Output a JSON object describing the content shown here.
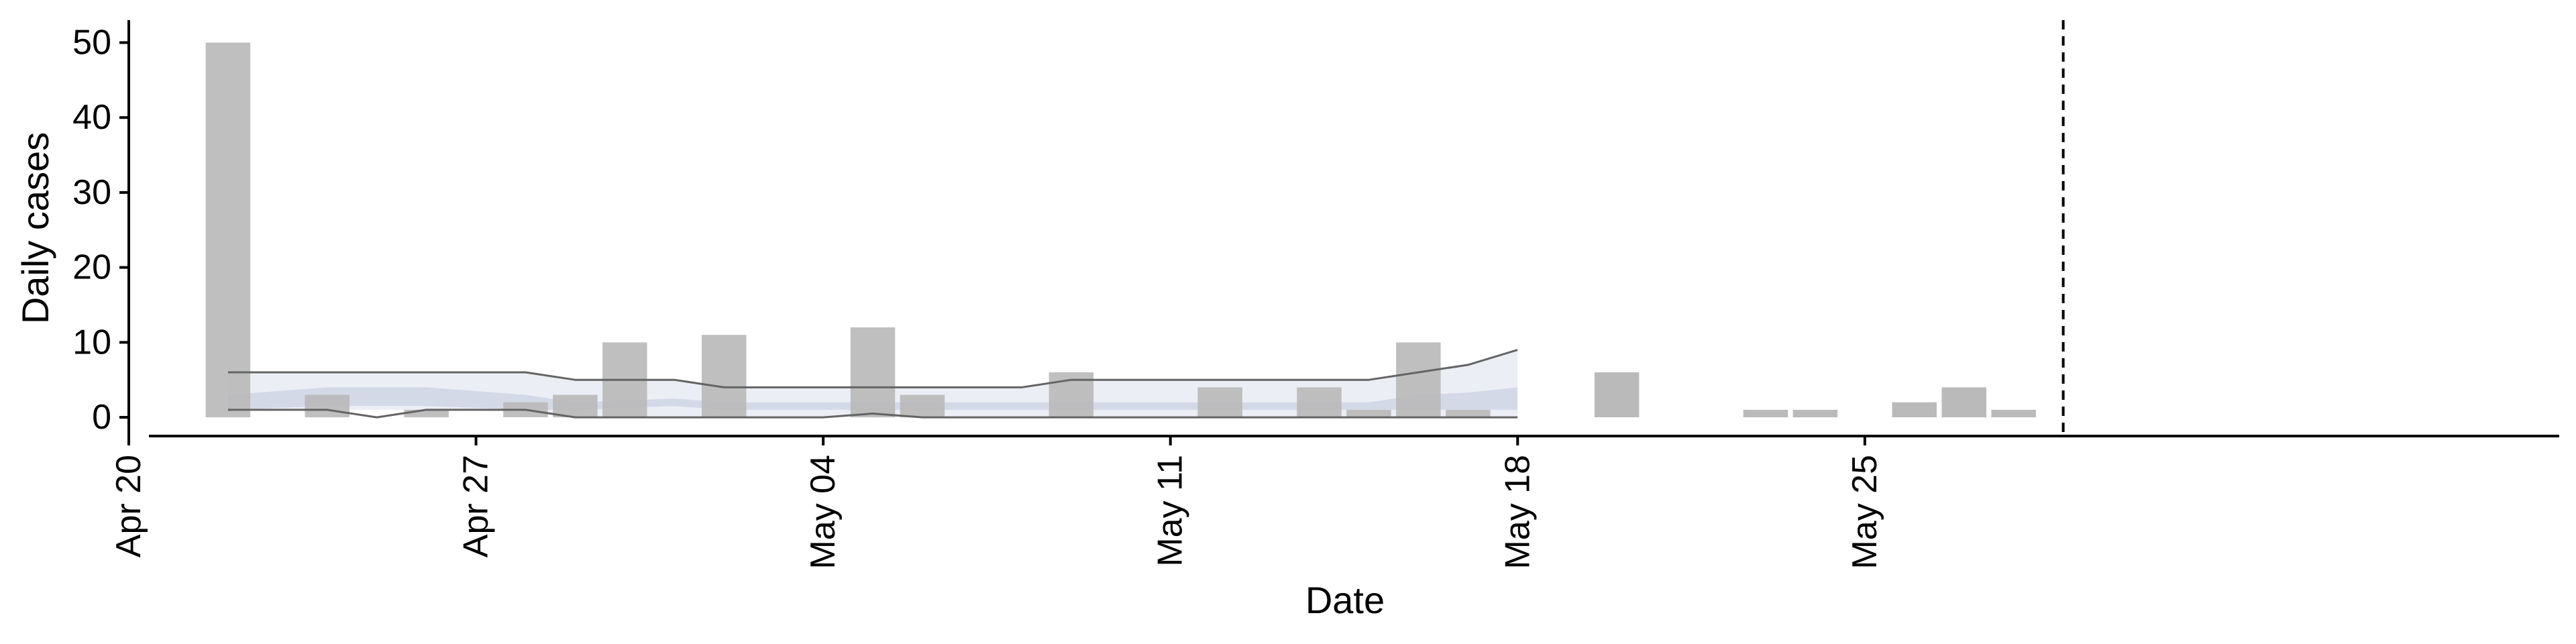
{
  "chart_data": {
    "type": "bar",
    "xlabel": "Date",
    "ylabel": "Daily cases",
    "ylim": [
      -2.5,
      53
    ],
    "xlim": [
      "2020-04-20",
      "2020-06-08"
    ],
    "y_ticks": [
      0,
      10,
      20,
      30,
      40,
      50
    ],
    "x_ticks": [
      {
        "date": "2020-04-20",
        "label": "Apr 20"
      },
      {
        "date": "2020-04-27",
        "label": "Apr 27"
      },
      {
        "date": "2020-05-04",
        "label": "May 04"
      },
      {
        "date": "2020-05-11",
        "label": "May 11"
      },
      {
        "date": "2020-05-18",
        "label": "May 18"
      },
      {
        "date": "2020-05-25",
        "label": "May 25"
      }
    ],
    "bars": [
      {
        "date": "2020-04-22",
        "value": 50,
        "period": "estimate"
      },
      {
        "date": "2020-04-24",
        "value": 3,
        "period": "estimate"
      },
      {
        "date": "2020-04-26",
        "value": 1,
        "period": "estimate"
      },
      {
        "date": "2020-04-28",
        "value": 2,
        "period": "estimate"
      },
      {
        "date": "2020-04-29",
        "value": 3,
        "period": "estimate"
      },
      {
        "date": "2020-04-30",
        "value": 10,
        "period": "estimate"
      },
      {
        "date": "2020-05-02",
        "value": 11,
        "period": "estimate"
      },
      {
        "date": "2020-05-05",
        "value": 12,
        "period": "estimate"
      },
      {
        "date": "2020-05-06",
        "value": 3,
        "period": "estimate"
      },
      {
        "date": "2020-05-09",
        "value": 6,
        "period": "estimate"
      },
      {
        "date": "2020-05-12",
        "value": 4,
        "period": "estimate"
      },
      {
        "date": "2020-05-14",
        "value": 4,
        "period": "estimate"
      },
      {
        "date": "2020-05-15",
        "value": 1,
        "period": "estimate"
      },
      {
        "date": "2020-05-16",
        "value": 10,
        "period": "estimate"
      },
      {
        "date": "2020-05-17",
        "value": 1,
        "period": "estimate"
      },
      {
        "date": "2020-05-20",
        "value": 6,
        "period": "observed"
      },
      {
        "date": "2020-05-23",
        "value": 1,
        "period": "observed"
      },
      {
        "date": "2020-05-24",
        "value": 1,
        "period": "observed"
      },
      {
        "date": "2020-05-26",
        "value": 2,
        "period": "observed"
      },
      {
        "date": "2020-05-27",
        "value": 4,
        "period": "observed"
      },
      {
        "date": "2020-05-28",
        "value": 1,
        "period": "observed"
      }
    ],
    "bands": [
      {
        "kind": "outer",
        "dates": [
          "2020-04-22",
          "2020-04-27",
          "2020-04-28",
          "2020-04-29",
          "2020-05-01",
          "2020-05-02",
          "2020-05-08",
          "2020-05-09",
          "2020-05-15",
          "2020-05-16",
          "2020-05-17",
          "2020-05-18"
        ],
        "upper": [
          6,
          6,
          6,
          5,
          5,
          4,
          4,
          5,
          5,
          6,
          7,
          9
        ],
        "lower": [
          1,
          1,
          1,
          0,
          0,
          0,
          0,
          0,
          0,
          0,
          0,
          0
        ]
      },
      {
        "kind": "inner",
        "dates": [
          "2020-04-22",
          "2020-04-24",
          "2020-04-26",
          "2020-04-28",
          "2020-04-29",
          "2020-05-01",
          "2020-05-02",
          "2020-05-08",
          "2020-05-09",
          "2020-05-15",
          "2020-05-16",
          "2020-05-17",
          "2020-05-18"
        ],
        "upper": [
          3,
          4,
          4,
          3,
          2,
          2.5,
          2,
          2,
          2,
          2,
          3,
          3.3,
          4
        ],
        "lower": [
          1,
          1.5,
          1.5,
          1,
          1,
          1.5,
          1,
          1,
          1,
          1,
          1,
          1,
          1
        ]
      }
    ],
    "lines": [
      {
        "kind": "upper-estimate",
        "dates": [
          "2020-04-22",
          "2020-04-27",
          "2020-04-28",
          "2020-04-29",
          "2020-05-01",
          "2020-05-02",
          "2020-05-08",
          "2020-05-09",
          "2020-05-15",
          "2020-05-16",
          "2020-05-17",
          "2020-05-18"
        ],
        "values": [
          6,
          6,
          6,
          5,
          5,
          4,
          4,
          5,
          5,
          6,
          7,
          9
        ]
      },
      {
        "kind": "lower-estimate",
        "dates": [
          "2020-04-22",
          "2020-04-24",
          "2020-04-25",
          "2020-04-26",
          "2020-04-28",
          "2020-04-29",
          "2020-05-04",
          "2020-05-05",
          "2020-05-06",
          "2020-05-17",
          "2020-05-18"
        ],
        "values": [
          1,
          1,
          0,
          1,
          1,
          0,
          0,
          0.5,
          0,
          0,
          0
        ]
      }
    ],
    "reference_line": {
      "date": "2020-05-29",
      "style": "dashed"
    },
    "estimate_end": "2020-05-18",
    "colors": {
      "bar": "#bababa",
      "outer_band": "#eceef5",
      "inner_band": "#d4d9e8",
      "line": "#646464",
      "axis": "#000000"
    }
  }
}
